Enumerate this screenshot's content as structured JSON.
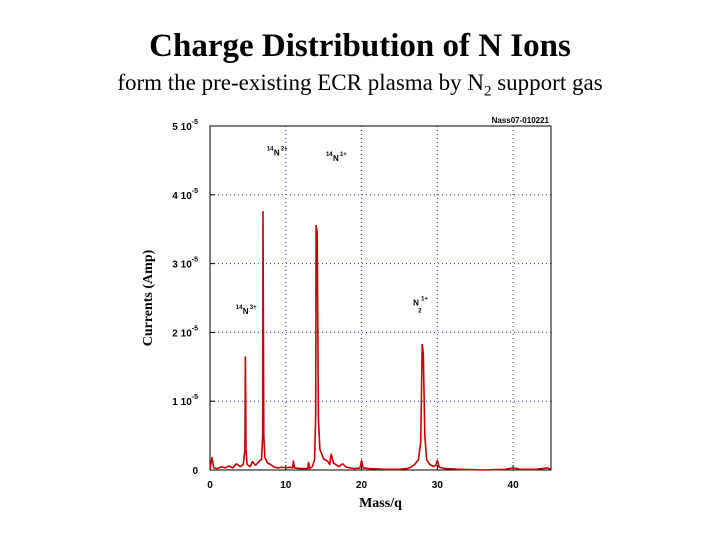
{
  "title": "Charge Distribution of N Ions",
  "subtitle": {
    "prefix": "form the pre-existing ECR plasma by N",
    "sub": "2",
    "suffix": " support gas"
  },
  "chart_data": {
    "type": "line",
    "tag": "Nass07-010221",
    "xlabel": "Mass/q",
    "ylabel": "Currents (Amp)",
    "xlim": [
      0,
      45
    ],
    "ylim": [
      0,
      5e-05
    ],
    "grid": true,
    "x_ticks": [
      {
        "value": 0,
        "label": "0"
      },
      {
        "value": 10,
        "label": "10"
      },
      {
        "value": 20,
        "label": "20"
      },
      {
        "value": 30,
        "label": "30"
      },
      {
        "value": 40,
        "label": "40"
      }
    ],
    "y_ticks": [
      {
        "value": 0,
        "mant": "0",
        "exp": ""
      },
      {
        "value": 1e-05,
        "mant": "1 10",
        "exp": "-5"
      },
      {
        "value": 2e-05,
        "mant": "2 10",
        "exp": "-5"
      },
      {
        "value": 3e-05,
        "mant": "3 10",
        "exp": "-5"
      },
      {
        "value": 4e-05,
        "mant": "4 10",
        "exp": "-5"
      },
      {
        "value": 5e-05,
        "mant": "5 10",
        "exp": "-5"
      }
    ],
    "peaks": [
      {
        "x": 4.67,
        "y": 1.64e-05
      },
      {
        "x": 7.0,
        "y": 3.75e-05
      },
      {
        "x": 14.0,
        "y": 3.55e-05
      },
      {
        "x": 28.0,
        "y": 1.82e-05
      }
    ],
    "series": [
      {
        "color": "#cc0000",
        "points": [
          [
            0.0,
            1e-07
          ],
          [
            0.25,
            1.8e-06
          ],
          [
            0.5,
            3e-07
          ],
          [
            1.0,
            2e-07
          ],
          [
            1.5,
            5e-07
          ],
          [
            2.0,
            3e-07
          ],
          [
            2.5,
            6e-07
          ],
          [
            3.0,
            3e-07
          ],
          [
            3.5,
            9e-07
          ],
          [
            4.0,
            5e-07
          ],
          [
            4.4,
            8e-07
          ],
          [
            4.6,
            3e-06
          ],
          [
            4.67,
            1.64e-05
          ],
          [
            4.75,
            3e-06
          ],
          [
            4.9,
            8e-07
          ],
          [
            5.3,
            5e-07
          ],
          [
            5.6,
            1.2e-06
          ],
          [
            6.0,
            7e-07
          ],
          [
            6.3,
            1e-06
          ],
          [
            6.6,
            1.4e-06
          ],
          [
            6.8,
            1.5e-06
          ],
          [
            6.95,
            5e-06
          ],
          [
            7.0,
            3.75e-05
          ],
          [
            7.1,
            5e-06
          ],
          [
            7.25,
            1.8e-06
          ],
          [
            7.6,
            1e-06
          ],
          [
            8.0,
            8e-07
          ],
          [
            8.5,
            4e-07
          ],
          [
            9.0,
            3e-07
          ],
          [
            9.5,
            4e-07
          ],
          [
            10.0,
            3e-07
          ],
          [
            10.5,
            4e-07
          ],
          [
            10.9,
            3e-07
          ],
          [
            11.0,
            1.3e-06
          ],
          [
            11.15,
            3e-07
          ],
          [
            12.0,
            2e-07
          ],
          [
            12.9,
            2e-07
          ],
          [
            13.0,
            1.1e-06
          ],
          [
            13.15,
            2e-07
          ],
          [
            13.5,
            5e-07
          ],
          [
            13.8,
            1.5e-06
          ],
          [
            13.95,
            8e-06
          ],
          [
            14.0,
            3.55e-05
          ],
          [
            14.15,
            3.45e-05
          ],
          [
            14.3,
            7.5e-06
          ],
          [
            14.5,
            3e-06
          ],
          [
            15.0,
            1.6e-06
          ],
          [
            15.5,
            1.3e-06
          ],
          [
            15.8,
            8e-07
          ],
          [
            16.0,
            2.3e-06
          ],
          [
            16.3,
            1e-06
          ],
          [
            17.0,
            5e-07
          ],
          [
            17.5,
            9e-07
          ],
          [
            18.0,
            4e-07
          ],
          [
            18.5,
            3e-07
          ],
          [
            19.0,
            2e-07
          ],
          [
            19.8,
            3e-07
          ],
          [
            20.0,
            1.4e-06
          ],
          [
            20.2,
            3e-07
          ],
          [
            21.0,
            2e-07
          ],
          [
            23.0,
            1e-07
          ],
          [
            25.0,
            1e-07
          ],
          [
            26.0,
            2e-07
          ],
          [
            26.5,
            4e-07
          ],
          [
            27.0,
            8e-07
          ],
          [
            27.5,
            1.5e-06
          ],
          [
            27.8,
            4e-06
          ],
          [
            28.0,
            1.82e-05
          ],
          [
            28.15,
            1.7e-05
          ],
          [
            28.35,
            5e-06
          ],
          [
            28.6,
            1.5e-06
          ],
          [
            29.0,
            8e-07
          ],
          [
            29.5,
            5e-07
          ],
          [
            29.8,
            7e-07
          ],
          [
            30.0,
            1.4e-06
          ],
          [
            30.25,
            4e-07
          ],
          [
            31.0,
            2e-07
          ],
          [
            33.0,
            1e-07
          ],
          [
            36.0,
            0.0
          ],
          [
            39.0,
            1e-07
          ],
          [
            40.0,
            3e-07
          ],
          [
            41.0,
            1e-07
          ],
          [
            43.0,
            1e-07
          ],
          [
            44.5,
            3e-07
          ],
          [
            45.0,
            1e-07
          ]
        ]
      }
    ],
    "annotations": [
      {
        "mass": "14",
        "elem": "N",
        "charge": "3+",
        "x": 3.4,
        "y": 2.3e-05
      },
      {
        "mass": "14",
        "elem": "N",
        "charge": "2+",
        "x": 7.5,
        "y": 4.6e-05
      },
      {
        "mass": "14",
        "elem": "N",
        "charge": "1+",
        "x": 15.3,
        "y": 4.52e-05
      },
      {
        "mass": "",
        "elem": "N",
        "sub": "2",
        "charge": "1+",
        "x": 26.8,
        "y": 2.42e-05
      }
    ]
  }
}
